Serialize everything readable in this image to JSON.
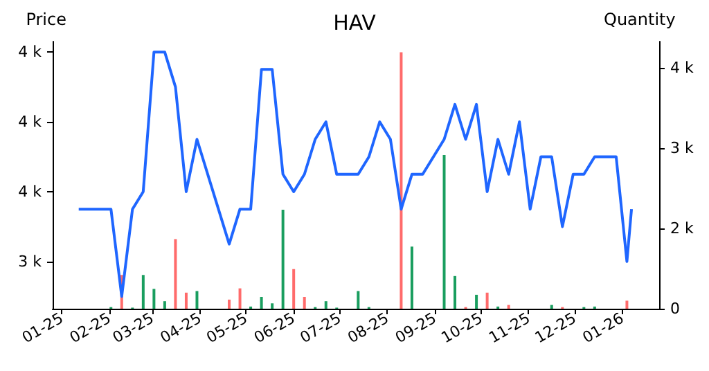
{
  "chart_data": {
    "type": "line",
    "title": "HAV",
    "ylabel": "Price",
    "y2label": "Quantity",
    "xlim": [
      "2024-12-26",
      "2026-01-25"
    ],
    "xticks": [
      {
        "value": "2025-01-01",
        "label": "01-25"
      },
      {
        "value": "2025-02-01",
        "label": "02-25"
      },
      {
        "value": "2025-03-01",
        "label": "03-25"
      },
      {
        "value": "2025-04-01",
        "label": "04-25"
      },
      {
        "value": "2025-05-01",
        "label": "05-25"
      },
      {
        "value": "2025-06-01",
        "label": "06-25"
      },
      {
        "value": "2025-07-01",
        "label": "07-25"
      },
      {
        "value": "2025-08-01",
        "label": "08-25"
      },
      {
        "value": "2025-09-01",
        "label": "09-25"
      },
      {
        "value": "2025-10-01",
        "label": "10-25"
      },
      {
        "value": "2025-11-01",
        "label": "11-25"
      },
      {
        "value": "2025-12-01",
        "label": "12-25"
      },
      {
        "value": "2026-01-01",
        "label": "01-26"
      }
    ],
    "ylim": [
      3265,
      4030
    ],
    "yticks": [
      {
        "value": 3400,
        "label": "3 k"
      },
      {
        "value": 3600,
        "label": "4 k"
      },
      {
        "value": 3800,
        "label": "4 k"
      },
      {
        "value": 4000,
        "label": "4 k"
      }
    ],
    "y2lim": [
      0,
      4990
    ],
    "y2ticks": [
      0,
      {
        "value": 1500,
        "label": "2 k"
      },
      {
        "value": 3000,
        "label": "3 k"
      },
      {
        "value": 4500,
        "label": "4 k"
      }
    ],
    "grid": false,
    "marker": "none",
    "line_style": "solid",
    "series": [
      {
        "type": "bar",
        "axis": "y2",
        "x": [
          "2025-02-02",
          "2025-02-09",
          "2025-02-16",
          "2025-02-23",
          "2025-03-02",
          "2025-03-09",
          "2025-03-16",
          "2025-03-23",
          "2025-03-30",
          "2025-04-20",
          "2025-04-27",
          "2025-05-04",
          "2025-05-11",
          "2025-05-18",
          "2025-05-25",
          "2025-06-01",
          "2025-06-08",
          "2025-06-15",
          "2025-06-22",
          "2025-06-29",
          "2025-07-13",
          "2025-07-20",
          "2025-08-10",
          "2025-08-17",
          "2025-09-07",
          "2025-09-14",
          "2025-09-21",
          "2025-09-28",
          "2025-10-05",
          "2025-10-12",
          "2025-10-19",
          "2025-11-16",
          "2025-11-23",
          "2025-12-07",
          "2025-12-14",
          "2026-01-04"
        ],
        "values": [
          30,
          630,
          20,
          630,
          370,
          140,
          1300,
          300,
          330,
          170,
          380,
          40,
          220,
          100,
          1850,
          740,
          220,
          30,
          140,
          20,
          330,
          30,
          4790,
          1160,
          2870,
          610,
          30,
          260,
          300,
          40,
          70,
          70,
          30,
          30,
          40,
          150
        ],
        "colors": [
          "#1a9e5f",
          "#ff6b6b",
          "#1a9e5f",
          "#1a9e5f",
          "#1a9e5f",
          "#1a9e5f",
          "#ff6b6b",
          "#ff6b6b",
          "#1a9e5f",
          "#ff6b6b",
          "#ff6b6b",
          "#1a9e5f",
          "#1a9e5f",
          "#1a9e5f",
          "#1a9e5f",
          "#ff6b6b",
          "#ff6b6b",
          "#1a9e5f",
          "#1a9e5f",
          "#1a9e5f",
          "#1a9e5f",
          "#1a9e5f",
          "#ff6b6b",
          "#1a9e5f",
          "#1a9e5f",
          "#1a9e5f",
          "#ff6b6b",
          "#1a9e5f",
          "#ff6b6b",
          "#1a9e5f",
          "#ff6b6b",
          "#1a9e5f",
          "#ff6b6b",
          "#1a9e5f",
          "#1a9e5f",
          "#ff6b6b"
        ]
      },
      {
        "color": "#1f66ff",
        "x": [
          "2025-01-12",
          "2025-02-02",
          "2025-02-09",
          "2025-02-16",
          "2025-02-23",
          "2025-03-02",
          "2025-03-09",
          "2025-03-16",
          "2025-03-23",
          "2025-03-30",
          "2025-04-20",
          "2025-04-27",
          "2025-05-04",
          "2025-05-11",
          "2025-05-18",
          "2025-05-25",
          "2025-06-01",
          "2025-06-08",
          "2025-06-15",
          "2025-06-22",
          "2025-06-29",
          "2025-07-13",
          "2025-07-20",
          "2025-07-27",
          "2025-08-03",
          "2025-08-10",
          "2025-08-17",
          "2025-08-24",
          "2025-09-07",
          "2025-09-14",
          "2025-09-21",
          "2025-09-28",
          "2025-10-05",
          "2025-10-12",
          "2025-10-19",
          "2025-10-26",
          "2025-11-02",
          "2025-11-09",
          "2025-11-16",
          "2025-11-23",
          "2025-11-30",
          "2025-12-07",
          "2025-12-14",
          "2025-12-28",
          "2026-01-04",
          "2026-01-07"
        ],
        "values": [
          3550,
          3550,
          3300,
          3550,
          3600,
          4000,
          4000,
          3900,
          3600,
          3750,
          3450,
          3550,
          3550,
          3950,
          3950,
          3650,
          3600,
          3650,
          3750,
          3800,
          3650,
          3650,
          3700,
          3800,
          3750,
          3550,
          3650,
          3650,
          3750,
          3850,
          3750,
          3850,
          3600,
          3750,
          3650,
          3800,
          3550,
          3700,
          3700,
          3500,
          3650,
          3650,
          3700,
          3700,
          3400,
          3550
        ]
      }
    ]
  }
}
